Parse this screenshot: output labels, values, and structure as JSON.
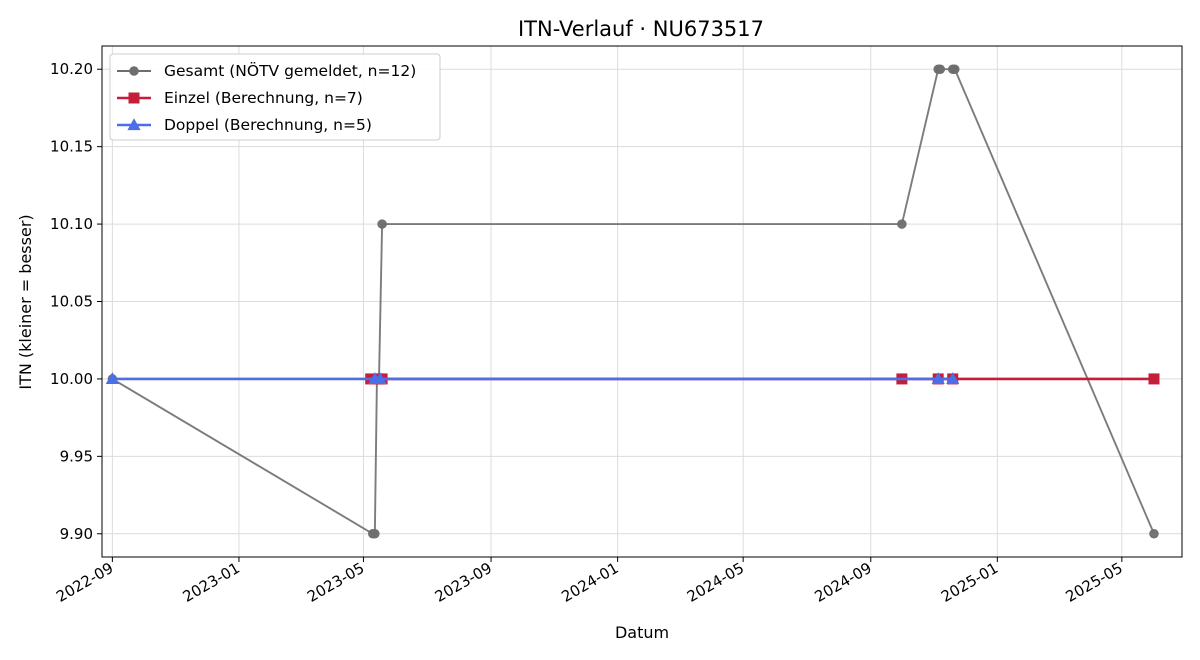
{
  "chart_data": {
    "type": "line",
    "title": "ITN-Verlauf · NU673517",
    "xlabel": "Datum",
    "ylabel": "ITN  (kleiner = besser)",
    "x_ticks": [
      "2022-09",
      "2023-01",
      "2023-05",
      "2023-09",
      "2024-01",
      "2024-05",
      "2024-09",
      "2025-01",
      "2025-05"
    ],
    "y_ticks": [
      "9.90",
      "9.95",
      "10.00",
      "10.05",
      "10.10",
      "10.15",
      "10.20"
    ],
    "xlim": [
      "2022-08-22",
      "2025-06-28"
    ],
    "ylim": [
      9.885,
      10.215
    ],
    "grid": true,
    "legend_position": "top-left",
    "series": [
      {
        "name": "Gesamt (NÖTV gemeldet, n=12)",
        "color": "#6e6e6e",
        "marker": "circle",
        "points": [
          {
            "x": "2022-09-01",
            "y": 10.0
          },
          {
            "x": "2023-05-10",
            "y": 9.9
          },
          {
            "x": "2023-05-12",
            "y": 9.9
          },
          {
            "x": "2023-05-14",
            "y": 10.0
          },
          {
            "x": "2023-05-16",
            "y": 10.0
          },
          {
            "x": "2023-05-19",
            "y": 10.1
          },
          {
            "x": "2024-10-01",
            "y": 10.1
          },
          {
            "x": "2024-11-05",
            "y": 10.2
          },
          {
            "x": "2024-11-07",
            "y": 10.2
          },
          {
            "x": "2024-11-19",
            "y": 10.2
          },
          {
            "x": "2024-11-21",
            "y": 10.2
          },
          {
            "x": "2025-06-01",
            "y": 9.9
          }
        ]
      },
      {
        "name": "Einzel (Berechnung, n=7)",
        "color": "#c41e3a",
        "marker": "square",
        "points": [
          {
            "x": "2023-05-08",
            "y": 10.0
          },
          {
            "x": "2023-05-16",
            "y": 10.0
          },
          {
            "x": "2023-05-19",
            "y": 10.0
          },
          {
            "x": "2024-10-01",
            "y": 10.0
          },
          {
            "x": "2024-11-05",
            "y": 10.0
          },
          {
            "x": "2024-11-19",
            "y": 10.0
          },
          {
            "x": "2025-06-01",
            "y": 10.0
          }
        ]
      },
      {
        "name": "Doppel (Berechnung, n=5)",
        "color": "#4c6ee6",
        "marker": "triangle",
        "points": [
          {
            "x": "2022-09-01",
            "y": 10.0
          },
          {
            "x": "2023-05-12",
            "y": 10.0
          },
          {
            "x": "2023-05-17",
            "y": 10.0
          },
          {
            "x": "2024-11-05",
            "y": 10.0
          },
          {
            "x": "2024-11-19",
            "y": 10.0
          }
        ]
      }
    ]
  }
}
